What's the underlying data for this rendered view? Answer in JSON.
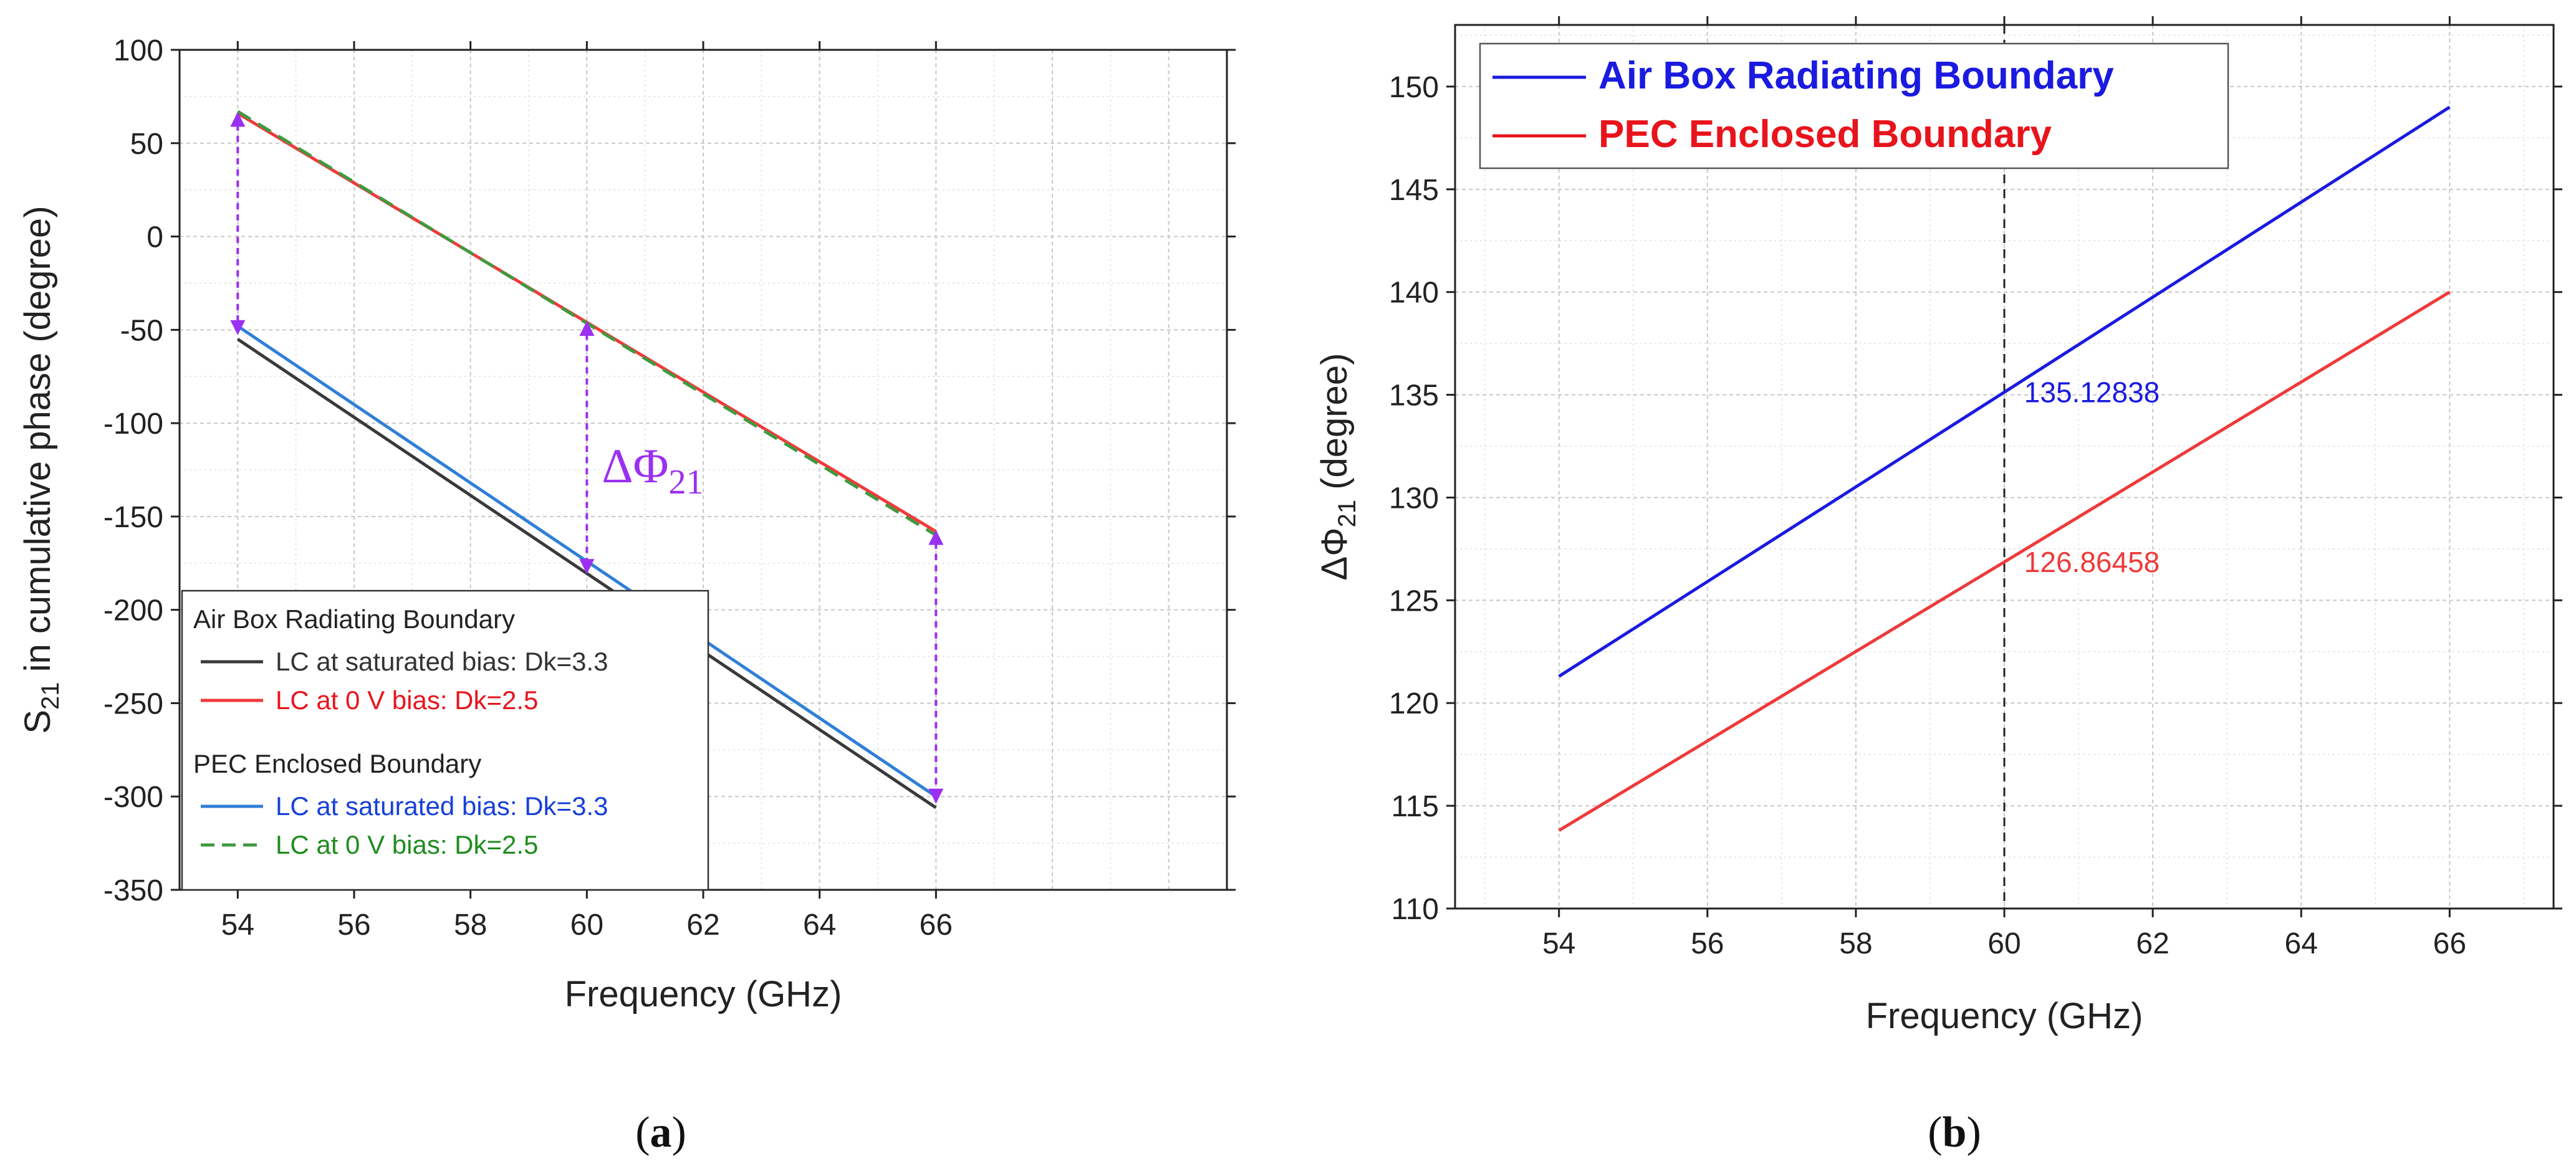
{
  "chart_data": [
    {
      "panel": "(a)",
      "panel_letter": "a",
      "type": "line",
      "title": "",
      "xlabel": "Frequency (GHz)",
      "ylabel": {
        "main": "S",
        "sub": "21",
        "rest": " in cumulative phase (degree)"
      },
      "xlim": [
        53,
        71
      ],
      "ylim": [
        -350,
        100
      ],
      "xticks": [
        54,
        56,
        58,
        60,
        62,
        64,
        66
      ],
      "xtick_labels": [
        "54",
        "56",
        "58",
        "60",
        "62",
        "64",
        "66"
      ],
      "yticks": [
        -350,
        -300,
        -250,
        -200,
        -150,
        -100,
        -50,
        0,
        50,
        100
      ],
      "ytick_labels": [
        "-350",
        "-300",
        "-250",
        "-200",
        "-150",
        "-100",
        "-50",
        "0",
        "50",
        "100"
      ],
      "grid": true,
      "series": [
        {
          "name": "LC at saturated bias: Dk=3.3",
          "group": "Air Box Radiating Boundary",
          "color": "#3a3a3a",
          "dash": "solid",
          "x": [
            54,
            66
          ],
          "y": [
            -55,
            -306
          ]
        },
        {
          "name": "LC at 0 V bias: Dk=2.5",
          "group": "Air Box Radiating Boundary",
          "color": "#f03a3a",
          "dash": "solid",
          "x": [
            54,
            66
          ],
          "y": [
            66,
            -158
          ]
        },
        {
          "name": "LC at saturated bias: Dk=3.3",
          "group": "PEC Enclosed Boundary",
          "color": "#2f7fd8",
          "dash": "solid",
          "x": [
            54,
            66
          ],
          "y": [
            -48,
            -300
          ]
        },
        {
          "name": "LC at 0 V bias: Dk=2.5",
          "group": "PEC Enclosed Boundary",
          "color": "#3f9a3f",
          "dash": "dashed",
          "x": [
            54,
            66
          ],
          "y": [
            67,
            -160
          ]
        }
      ],
      "legend": {
        "position": "bottom-left",
        "groups": [
          {
            "title": "Air Box Radiating Boundary",
            "entries": [
              {
                "label": "LC at saturated bias: Dk=3.3",
                "color": "#333333",
                "line_color": "#3a3a3a",
                "dash": "solid"
              },
              {
                "label": "LC at 0 V bias: Dk=2.5",
                "color": "#e8141c",
                "line_color": "#f03a3a",
                "dash": "solid"
              }
            ]
          },
          {
            "title": "PEC Enclosed Boundary",
            "entries": [
              {
                "label": "LC at saturated bias: Dk=3.3",
                "color": "#1640d8",
                "line_color": "#2f7fd8",
                "dash": "solid"
              },
              {
                "label": "LC at 0 V bias: Dk=2.5",
                "color": "#1f8c1f",
                "line_color": "#3f9a3f",
                "dash": "dashed"
              }
            ]
          }
        ]
      },
      "annotations": [
        {
          "type": "double-arrow",
          "x": 54,
          "y1": 66,
          "y2": -52,
          "color": "#9b30f0"
        },
        {
          "type": "double-arrow",
          "x": 60,
          "y1": -46,
          "y2": -180,
          "color": "#9b30f0"
        },
        {
          "type": "double-arrow",
          "x": 66,
          "y1": -158,
          "y2": -303,
          "color": "#9b30f0"
        },
        {
          "type": "text",
          "main": "ΔΦ",
          "sub": "21",
          "x": 60.15,
          "y": -125,
          "color": "#9b30f0"
        }
      ]
    },
    {
      "panel": "(b)",
      "panel_letter": "b",
      "type": "line",
      "title": "",
      "xlabel": "Frequency (GHz)",
      "ylabel": {
        "main": "ΔΦ",
        "sub": "21",
        "rest": " (degree)"
      },
      "xlim": [
        52.6,
        67.4
      ],
      "ylim": [
        110,
        153
      ],
      "xticks": [
        54,
        56,
        58,
        60,
        62,
        64,
        66
      ],
      "xtick_labels": [
        "54",
        "56",
        "58",
        "60",
        "62",
        "64",
        "66"
      ],
      "yticks": [
        110,
        115,
        120,
        125,
        130,
        135,
        140,
        145,
        150
      ],
      "ytick_labels": [
        "110",
        "115",
        "120",
        "125",
        "130",
        "135",
        "140",
        "145",
        "150"
      ],
      "grid": true,
      "series": [
        {
          "name": "Air Box Radiating Boundary",
          "color": "#1a1ae0",
          "dash": "solid",
          "x": [
            54,
            60,
            66
          ],
          "y": [
            121.3,
            135.12838,
            149.0
          ]
        },
        {
          "name": "PEC Enclosed Boundary",
          "color": "#ee3a3a",
          "dash": "solid",
          "x": [
            54,
            60,
            66
          ],
          "y": [
            113.8,
            126.86458,
            140.0
          ]
        }
      ],
      "legend": {
        "position": "top-left",
        "entries": [
          {
            "label": "Air Box Radiating Boundary",
            "color": "#1a1ae0"
          },
          {
            "label": "PEC Enclosed Boundary",
            "color": "#e8141c"
          }
        ]
      },
      "vline": {
        "x": 60,
        "color": "#222222",
        "dash": "dashed"
      },
      "annotations": [
        {
          "type": "text",
          "text": "135.12838",
          "x": 60.2,
          "y": 135.12838,
          "color": "#1a1ae0"
        },
        {
          "type": "text",
          "text": "126.86458",
          "x": 60.2,
          "y": 126.86458,
          "color": "#ee3a3a"
        }
      ]
    }
  ]
}
